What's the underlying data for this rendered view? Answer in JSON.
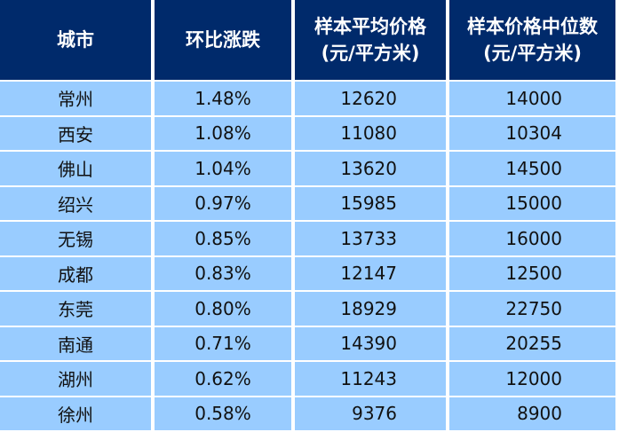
{
  "headers": {
    "city": "城市",
    "change": "环比涨跌",
    "avg_line1": "样本平均价格",
    "avg_line2": "(元/平方米)",
    "median_line1": "样本价格中位数",
    "median_line2": "(元/平方米)"
  },
  "rows": [
    {
      "city": "常州",
      "change": "1.48%",
      "avg": "12620",
      "median": "14000"
    },
    {
      "city": "西安",
      "change": "1.08%",
      "avg": "11080",
      "median": "10304"
    },
    {
      "city": "佛山",
      "change": "1.04%",
      "avg": "13620",
      "median": "14500"
    },
    {
      "city": "绍兴",
      "change": "0.97%",
      "avg": "15985",
      "median": "15000"
    },
    {
      "city": "无锡",
      "change": "0.85%",
      "avg": "13733",
      "median": "16000"
    },
    {
      "city": "成都",
      "change": "0.83%",
      "avg": "12147",
      "median": "12500"
    },
    {
      "city": "东莞",
      "change": "0.80%",
      "avg": "18929",
      "median": "22750"
    },
    {
      "city": "南通",
      "change": "0.71%",
      "avg": "14390",
      "median": "20255"
    },
    {
      "city": "湖州",
      "change": "0.62%",
      "avg": "11243",
      "median": "12000"
    },
    {
      "city": "徐州",
      "change": "0.58%",
      "avg": "9376",
      "median": "8900"
    }
  ],
  "colors": {
    "header_bg": "#002a6b",
    "header_text": "#ffffff",
    "row_bg": "#99ccff",
    "row_text": "#111111"
  }
}
